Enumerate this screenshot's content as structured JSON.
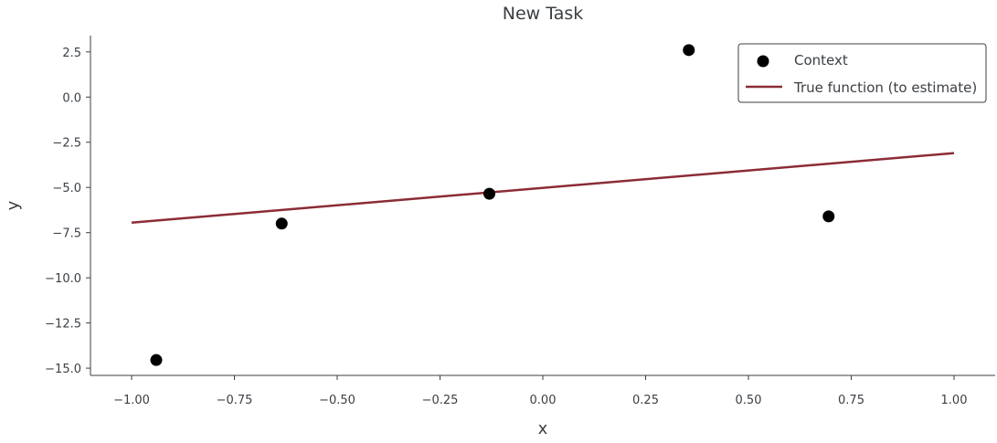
{
  "chart_data": {
    "type": "scatter",
    "title": "New Task",
    "xlabel": "x",
    "ylabel": "y",
    "xlim": [
      -1.1,
      1.1
    ],
    "ylim": [
      -15.4,
      3.4
    ],
    "xticks": [
      -1.0,
      -0.75,
      -0.5,
      -0.25,
      0.0,
      0.25,
      0.5,
      0.75,
      1.0
    ],
    "xtick_labels": [
      "−1.00",
      "−0.75",
      "−0.50",
      "−0.25",
      "0.00",
      "0.25",
      "0.50",
      "0.75",
      "1.00"
    ],
    "yticks": [
      2.5,
      0.0,
      -2.5,
      -5.0,
      -7.5,
      -10.0,
      -12.5,
      -15.0
    ],
    "ytick_labels": [
      "2.5",
      "0.0",
      "−2.5",
      "−5.0",
      "−7.5",
      "−10.0",
      "−12.5",
      "−15.0"
    ],
    "grid": false,
    "legend_position": "top-right",
    "series": [
      {
        "name": "Context",
        "kind": "scatter",
        "color": "#000000",
        "points": [
          {
            "x": -0.94,
            "y": -14.55
          },
          {
            "x": -0.635,
            "y": -7.0
          },
          {
            "x": -0.13,
            "y": -5.35
          },
          {
            "x": 0.355,
            "y": 2.6
          },
          {
            "x": 0.695,
            "y": -6.6
          }
        ]
      },
      {
        "name": "True function (to estimate)",
        "kind": "line",
        "color": "#8b2c36",
        "points": [
          {
            "x": -1.0,
            "y": -6.95
          },
          {
            "x": 1.0,
            "y": -3.1
          }
        ]
      }
    ]
  }
}
